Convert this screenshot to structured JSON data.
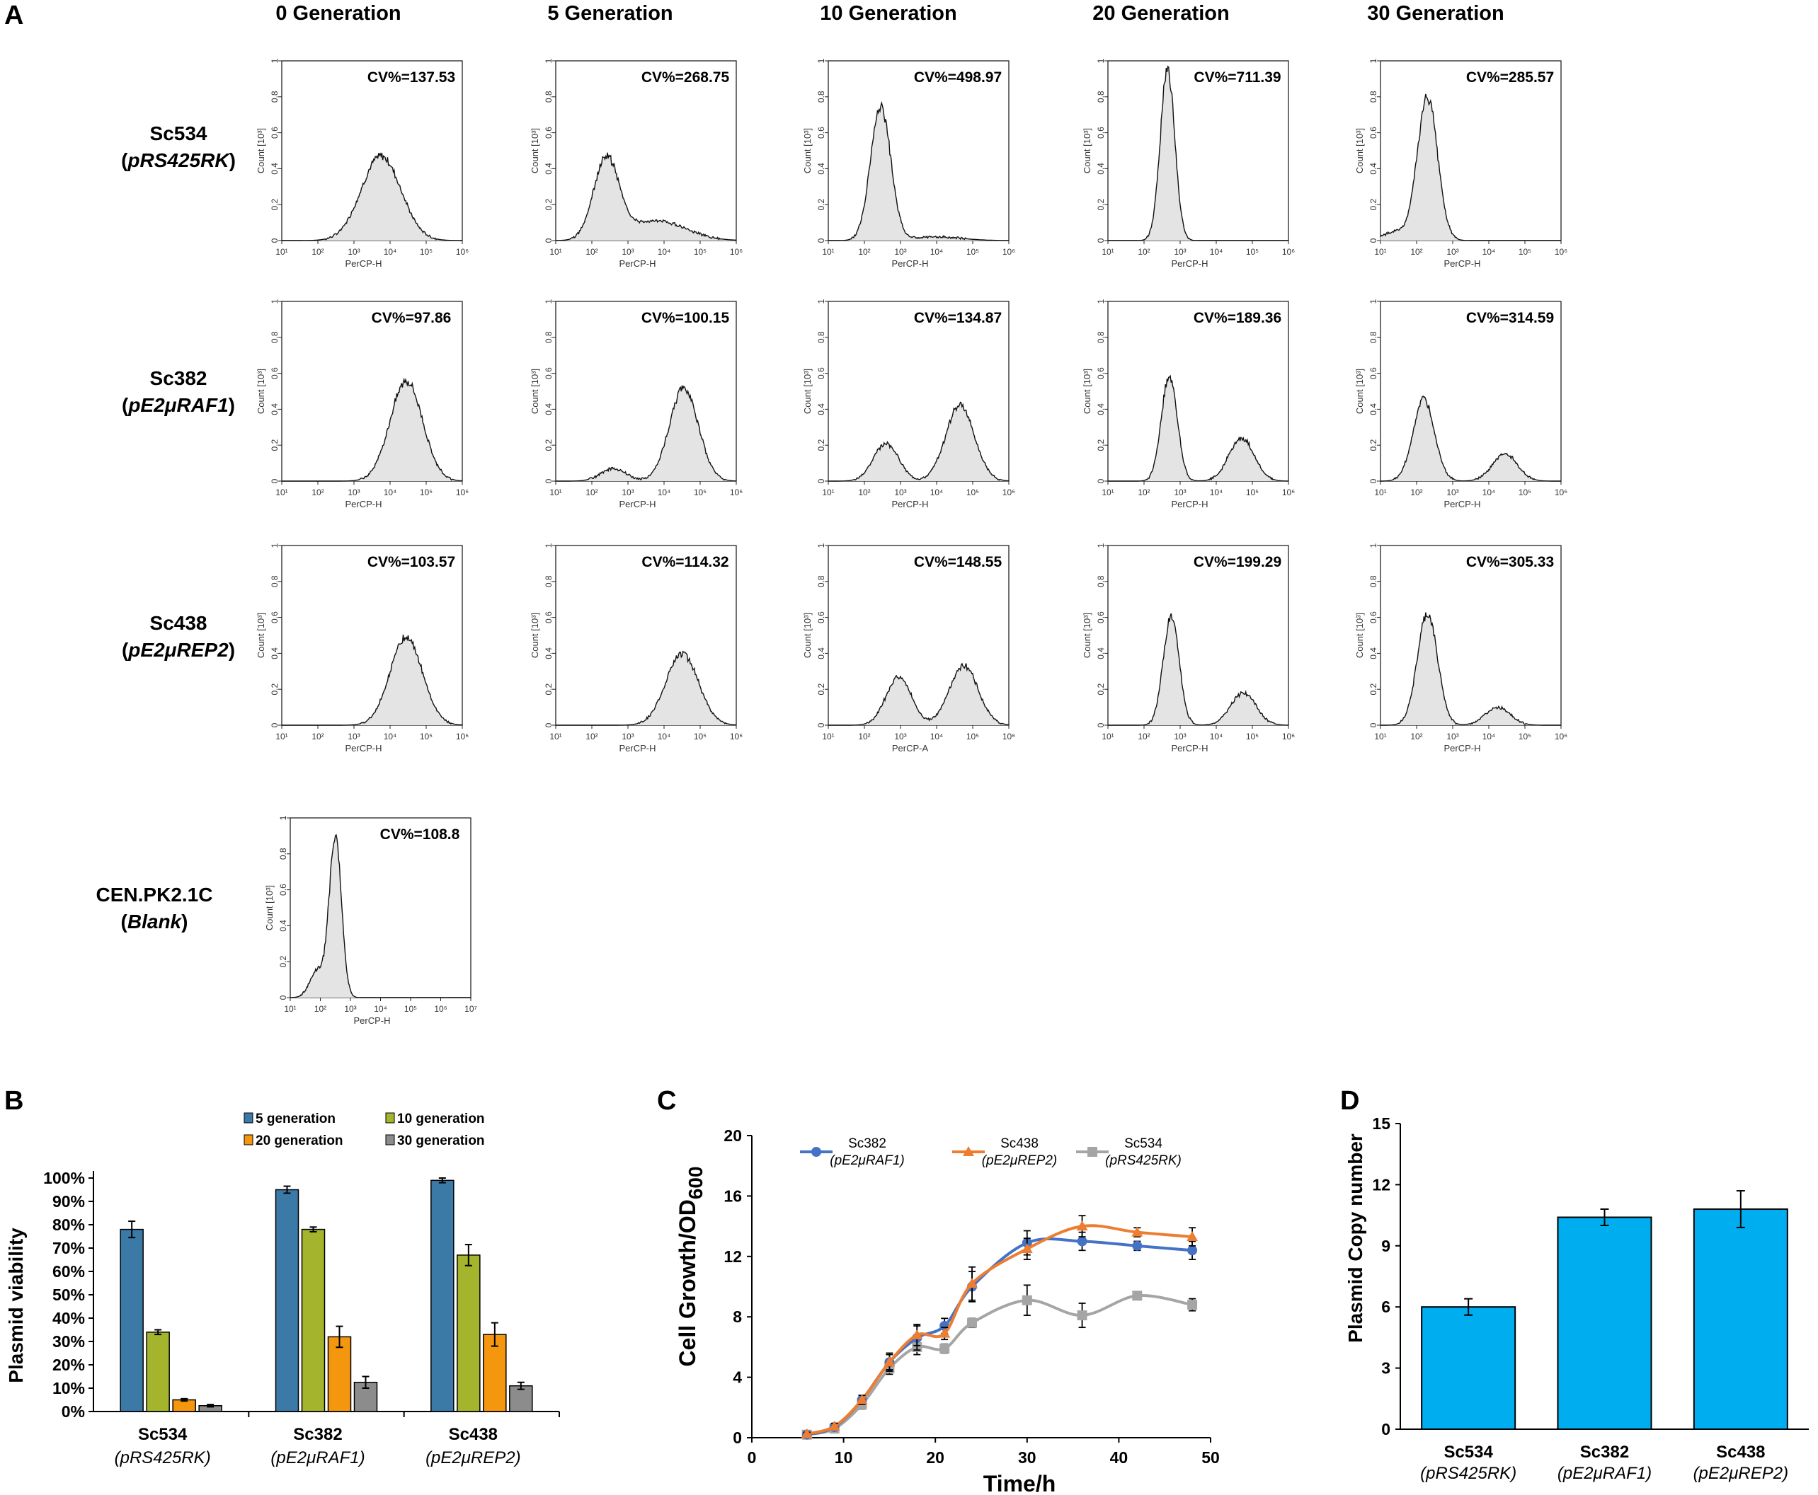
{
  "figure": {
    "panel_labels": [
      "A",
      "B",
      "C",
      "D"
    ]
  },
  "chart_data": [
    {
      "type": "area",
      "panel": "A",
      "subtitle": "Flow cytometry histograms",
      "columns": [
        "0 Generation",
        "5 Generation",
        "10 Generation",
        "20 Generation",
        "30 Generation"
      ],
      "rows": [
        {
          "strain": "Sc534",
          "plasmid": "pRS425RK",
          "suffix": ""
        },
        {
          "strain": "Sc382",
          "plasmid": "pE2μRAF1",
          "suffix": ""
        },
        {
          "strain": "Sc438",
          "plasmid": "pE2μREP2",
          "suffix": ""
        },
        {
          "strain": "CEN.PK2.1C",
          "plasmid": "Blank",
          "suffix": ""
        }
      ],
      "y_label": "Count [10³]",
      "y_ticks": [
        "0",
        "0.2",
        "0.4",
        "0.6",
        "0.8",
        "1"
      ],
      "x_tick_labels": [
        "10¹",
        "10²",
        "10³",
        "10⁴",
        "10⁵",
        "10⁶",
        "10⁷"
      ],
      "cells": [
        {
          "row": 0,
          "col": 0,
          "cv": "CV%=137.53",
          "xlabel": "PerCP-H",
          "decades": 6,
          "peaks": [
            {
              "logx": 3.75,
              "h": 0.47,
              "w": 0.55
            }
          ]
        },
        {
          "row": 0,
          "col": 1,
          "cv": "CV%=268.75",
          "xlabel": "PerCP-H",
          "decades": 6,
          "peaks": [
            {
              "logx": 2.4,
              "h": 0.45,
              "w": 0.35
            },
            {
              "logx": 3.8,
              "h": 0.11,
              "w": 0.8
            }
          ]
        },
        {
          "row": 0,
          "col": 2,
          "cv": "CV%=498.97",
          "xlabel": "PerCP-H",
          "decades": 6,
          "peaks": [
            {
              "logx": 2.45,
              "h": 0.75,
              "w": 0.28
            },
            {
              "logx": 4.0,
              "h": 0.02,
              "w": 0.7
            }
          ]
        },
        {
          "row": 0,
          "col": 3,
          "cv": "CV%=711.39",
          "xlabel": "PerCP-H",
          "decades": 6,
          "peaks": [
            {
              "logx": 2.65,
              "h": 0.95,
              "w": 0.2
            }
          ]
        },
        {
          "row": 0,
          "col": 4,
          "cv": "CV%=285.57",
          "xlabel": "PerCP-H",
          "decades": 6,
          "peaks": [
            {
              "logx": 2.3,
              "h": 0.8,
              "w": 0.28
            },
            {
              "logx": 1.4,
              "h": 0.05,
              "w": 0.3
            }
          ]
        },
        {
          "row": 1,
          "col": 0,
          "cv": "CV%=97.86",
          "xlabel": "PerCP-H",
          "decades": 6,
          "peaks": [
            {
              "logx": 4.45,
              "h": 0.56,
              "w": 0.45
            }
          ]
        },
        {
          "row": 1,
          "col": 1,
          "cv": "CV%=100.15",
          "xlabel": "PerCP-H",
          "decades": 6,
          "peaks": [
            {
              "logx": 2.6,
              "h": 0.07,
              "w": 0.35
            },
            {
              "logx": 4.55,
              "h": 0.52,
              "w": 0.4
            }
          ]
        },
        {
          "row": 1,
          "col": 2,
          "cv": "CV%=134.87",
          "xlabel": "PerCP-H",
          "decades": 6,
          "peaks": [
            {
              "logx": 2.6,
              "h": 0.21,
              "w": 0.35
            },
            {
              "logx": 4.65,
              "h": 0.42,
              "w": 0.4
            }
          ]
        },
        {
          "row": 1,
          "col": 3,
          "cv": "CV%=189.36",
          "xlabel": "PerCP-H",
          "decades": 6,
          "peaks": [
            {
              "logx": 2.7,
              "h": 0.58,
              "w": 0.22
            },
            {
              "logx": 4.7,
              "h": 0.24,
              "w": 0.35
            }
          ]
        },
        {
          "row": 1,
          "col": 4,
          "cv": "CV%=314.59",
          "xlabel": "PerCP-H",
          "decades": 6,
          "peaks": [
            {
              "logx": 2.2,
              "h": 0.45,
              "w": 0.3
            },
            {
              "logx": 4.45,
              "h": 0.15,
              "w": 0.35
            }
          ]
        },
        {
          "row": 2,
          "col": 0,
          "cv": "CV%=103.57",
          "xlabel": "PerCP-H",
          "decades": 6,
          "peaks": [
            {
              "logx": 4.45,
              "h": 0.49,
              "w": 0.45
            }
          ]
        },
        {
          "row": 2,
          "col": 1,
          "cv": "CV%=114.32",
          "xlabel": "PerCP-H",
          "decades": 6,
          "peaks": [
            {
              "logx": 4.5,
              "h": 0.4,
              "w": 0.45
            }
          ]
        },
        {
          "row": 2,
          "col": 2,
          "cv": "CV%=148.55",
          "xlabel": "PerCP-A",
          "decades": 6,
          "peaks": [
            {
              "logx": 2.95,
              "h": 0.27,
              "w": 0.35
            },
            {
              "logx": 4.75,
              "h": 0.33,
              "w": 0.4
            }
          ]
        },
        {
          "row": 2,
          "col": 3,
          "cv": "CV%=199.29",
          "xlabel": "PerCP-H",
          "decades": 6,
          "peaks": [
            {
              "logx": 2.75,
              "h": 0.6,
              "w": 0.22
            },
            {
              "logx": 4.75,
              "h": 0.18,
              "w": 0.35
            }
          ]
        },
        {
          "row": 2,
          "col": 4,
          "cv": "CV%=305.33",
          "xlabel": "PerCP-H",
          "decades": 6,
          "peaks": [
            {
              "logx": 2.3,
              "h": 0.62,
              "w": 0.28
            },
            {
              "logx": 4.25,
              "h": 0.1,
              "w": 0.35
            }
          ]
        },
        {
          "row": 3,
          "col": 0,
          "cv": "CV%=108.8",
          "xlabel": "PerCP-H",
          "decades": 7,
          "peaks": [
            {
              "logx": 2.5,
              "h": 0.9,
              "w": 0.2
            },
            {
              "logx": 1.9,
              "h": 0.15,
              "w": 0.25
            }
          ]
        }
      ]
    },
    {
      "type": "bar",
      "panel": "B",
      "ylabel": "Plasmid viability",
      "ylim": [
        0,
        100
      ],
      "y_ticks": [
        "0%",
        "10%",
        "20%",
        "30%",
        "40%",
        "50%",
        "60%",
        "70%",
        "80%",
        "90%",
        "100%"
      ],
      "categories": [
        {
          "name": "Sc534",
          "plasmid": "(pRS425RK)"
        },
        {
          "name": "Sc382",
          "plasmid": "(pE2μRAF1)"
        },
        {
          "name": "Sc438",
          "plasmid": "(pE2μREP2)"
        }
      ],
      "series": [
        {
          "name": "5 generation",
          "color": "#3B79A6",
          "values": [
            78,
            95,
            99
          ],
          "errors": [
            3.5,
            1.5,
            1.0
          ]
        },
        {
          "name": "10 generation",
          "color": "#A4B42C",
          "values": [
            34,
            78,
            67
          ],
          "errors": [
            1.0,
            1.0,
            4.5
          ]
        },
        {
          "name": "20 generation",
          "color": "#F5960F",
          "values": [
            5,
            32,
            33
          ],
          "errors": [
            0.5,
            4.5,
            5.0
          ]
        },
        {
          "name": "30 generation",
          "color": "#8C8C8C",
          "values": [
            2.5,
            12.5,
            11
          ],
          "errors": [
            0.5,
            2.5,
            1.5
          ]
        }
      ]
    },
    {
      "type": "line",
      "panel": "C",
      "xlabel": "Time/h",
      "ylabel_main": "Cell Growth/OD",
      "ylabel_sub": "600",
      "xlim": [
        0,
        50
      ],
      "ylim": [
        0,
        20
      ],
      "x_ticks": [
        0,
        10,
        20,
        30,
        40,
        50
      ],
      "y_ticks": [
        0,
        4,
        8,
        12,
        16,
        20
      ],
      "series": [
        {
          "name": "Sc382",
          "plasmid": "(pE2μRAF1)",
          "color": "#4472C4",
          "marker": "circle",
          "x": [
            6,
            9,
            12,
            15,
            18,
            21,
            24,
            30,
            36,
            42,
            48
          ],
          "y": [
            0.2,
            0.7,
            2.5,
            5.0,
            6.6,
            7.4,
            10.0,
            12.9,
            13.0,
            12.7,
            12.4
          ],
          "err": [
            0.1,
            0.2,
            0.3,
            0.6,
            0.8,
            0.5,
            1.0,
            0.8,
            0.6,
            0.3,
            0.6
          ]
        },
        {
          "name": "Sc438",
          "plasmid": "(pE2μREP2)",
          "color": "#ED7D31",
          "marker": "triangle",
          "x": [
            6,
            9,
            12,
            15,
            18,
            21,
            24,
            30,
            36,
            42,
            48
          ],
          "y": [
            0.25,
            0.75,
            2.5,
            5.0,
            6.8,
            6.9,
            10.2,
            12.5,
            14.0,
            13.6,
            13.3
          ],
          "err": [
            0.1,
            0.2,
            0.3,
            0.5,
            0.7,
            0.4,
            1.1,
            0.7,
            0.7,
            0.3,
            0.6
          ]
        },
        {
          "name": "Sc534",
          "plasmid": "(pRS425RK)",
          "color": "#A5A5A5",
          "marker": "square",
          "x": [
            6,
            9,
            12,
            15,
            18,
            21,
            24,
            30,
            36,
            42,
            48
          ],
          "y": [
            0.2,
            0.6,
            2.2,
            4.6,
            6.0,
            5.9,
            7.6,
            9.1,
            8.1,
            9.4,
            8.8
          ],
          "err": [
            0.1,
            0.1,
            0.3,
            0.4,
            0.5,
            0.3,
            0.3,
            1.0,
            0.8,
            0.2,
            0.4
          ]
        }
      ]
    },
    {
      "type": "bar",
      "panel": "D",
      "ylabel": "Plasmid Copy number",
      "ylim": [
        0,
        15
      ],
      "y_ticks": [
        0,
        3,
        6,
        9,
        12,
        15
      ],
      "categories": [
        {
          "name": "Sc534",
          "plasmid": "(pRS425RK)"
        },
        {
          "name": "Sc382",
          "plasmid": "(pE2μRAF1)"
        },
        {
          "name": "Sc438",
          "plasmid": "(pE2μREP2)"
        }
      ],
      "color": "#00AEEF",
      "values": [
        6.0,
        10.4,
        10.8
      ],
      "errors": [
        0.4,
        0.4,
        0.9
      ]
    }
  ]
}
